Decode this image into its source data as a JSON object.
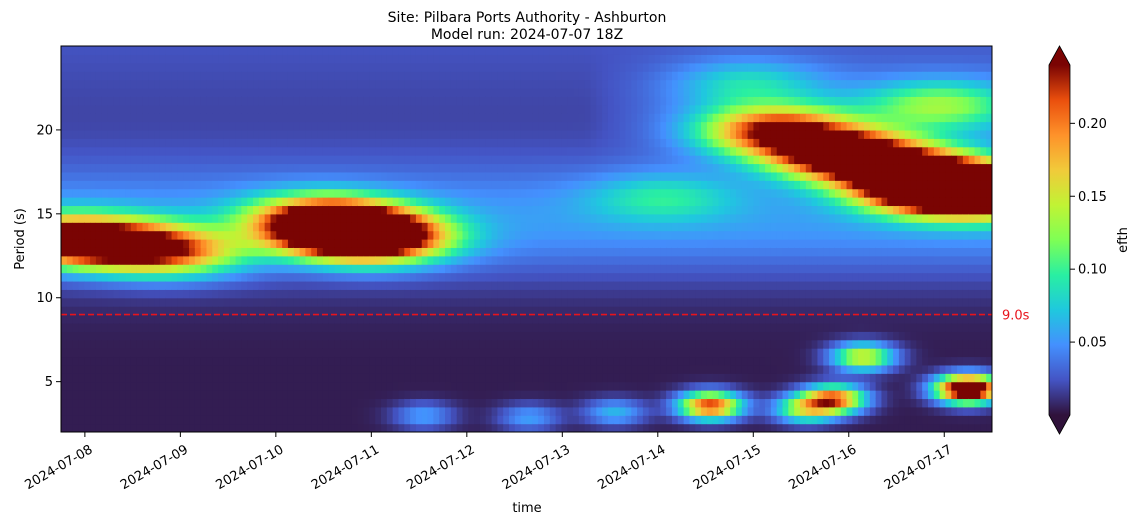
{
  "chart_data": {
    "type": "heatmap",
    "title_line1": "Site: Pilbara Ports Authority - Ashburton",
    "title_line2": "Model run: 2024-07-07 18Z",
    "xlabel": "time",
    "ylabel": "Period (s)",
    "x_ticks": [
      "2024-07-08",
      "2024-07-09",
      "2024-07-10",
      "2024-07-11",
      "2024-07-12",
      "2024-07-13",
      "2024-07-14",
      "2024-07-15",
      "2024-07-16",
      "2024-07-17"
    ],
    "xlim": [
      "2024-07-07T18:00",
      "2024-07-17T12:00"
    ],
    "y_ticks": [
      5,
      10,
      15,
      20
    ],
    "ylim": [
      2,
      25
    ],
    "colorbar": {
      "label": "efth",
      "ticks": [
        0.05,
        0.1,
        0.15,
        0.2
      ],
      "tick_labels": [
        "0.05",
        "0.10",
        "0.15",
        "0.20"
      ],
      "vmin": 0,
      "vmax": 0.24,
      "extend": "both",
      "colormap": "turbo"
    },
    "reference_line": {
      "period": 9.0,
      "label": "9.0s",
      "color": "#e8141c",
      "style": "dashed"
    },
    "blobs": [
      {
        "t": 0.0,
        "p": 13.5,
        "a": 0.18
      },
      {
        "t": 0.6,
        "p": 13.2,
        "a": 0.17
      },
      {
        "t": 1.2,
        "p": 12.7,
        "a": 0.13
      },
      {
        "t": 3.0,
        "p": 14.0,
        "a": 0.26
      },
      {
        "t": 2.7,
        "p": 14.8,
        "a": 0.15
      },
      {
        "t": 3.3,
        "p": 13.5,
        "a": 0.18
      },
      {
        "t": 6.3,
        "p": 16.0,
        "a": 0.05
      },
      {
        "t": 7.5,
        "p": 20.0,
        "a": 0.2
      },
      {
        "t": 8.2,
        "p": 18.6,
        "a": 0.26
      },
      {
        "t": 8.9,
        "p": 17.5,
        "a": 0.2
      },
      {
        "t": 9.2,
        "p": 16.5,
        "a": 0.28
      },
      {
        "t": 9.7,
        "p": 16.3,
        "a": 0.2
      },
      {
        "t": 9.2,
        "p": 21.5,
        "a": 0.09
      },
      {
        "t": 7.2,
        "p": 22.8,
        "a": 0.05
      },
      {
        "t": 3.8,
        "p": 3.0,
        "a": 0.05
      },
      {
        "t": 4.9,
        "p": 2.9,
        "a": 0.05
      },
      {
        "t": 5.8,
        "p": 3.2,
        "a": 0.06
      },
      {
        "t": 6.8,
        "p": 3.6,
        "a": 0.22
      },
      {
        "t": 7.8,
        "p": 3.4,
        "a": 0.13
      },
      {
        "t": 8.1,
        "p": 4.0,
        "a": 0.2
      },
      {
        "t": 8.4,
        "p": 6.5,
        "a": 0.15
      },
      {
        "t": 9.5,
        "p": 4.6,
        "a": 0.32
      }
    ]
  }
}
